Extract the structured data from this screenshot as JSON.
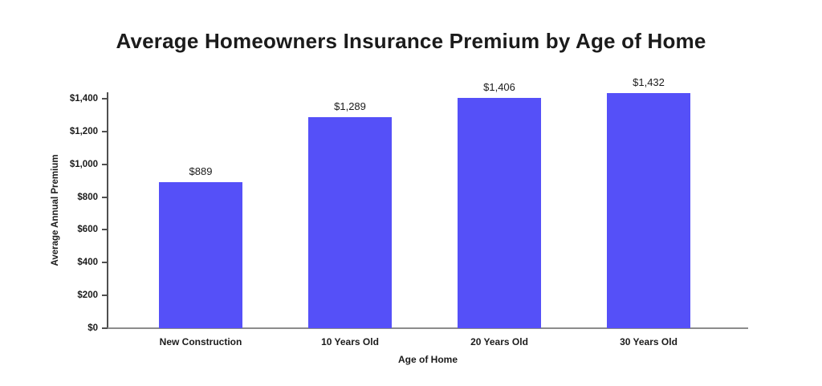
{
  "title": "Average Homeowners Insurance Premium by Age of Home",
  "chart_data": {
    "type": "bar",
    "title": "Average Homeowners Insurance Premium by Age of Home",
    "categories": [
      "New Construction",
      "10 Years Old",
      "20 Years Old",
      "30 Years Old"
    ],
    "values": [
      889,
      1289,
      1406,
      1432
    ],
    "value_labels": [
      "$889",
      "$1,289",
      "$1,406",
      "$1,432"
    ],
    "xlabel": "Age of Home",
    "ylabel": "Average Annual Premium",
    "ylim": [
      0,
      1400
    ],
    "y_ticks": [
      0,
      200,
      400,
      600,
      800,
      1000,
      1200,
      1400
    ],
    "y_tick_labels": [
      "$0",
      "$200",
      "$400",
      "$600",
      "$800",
      "$1,000",
      "$1,200",
      "$1,400"
    ],
    "grid": false,
    "legend": false,
    "bar_color": "#5550F8"
  },
  "colors": {
    "background": "#ffffff",
    "text": "#1b1b1b",
    "bar": "#5550F8",
    "y_axis_line": "#4f4f4f",
    "x_axis_line": "#8c8c8c"
  }
}
